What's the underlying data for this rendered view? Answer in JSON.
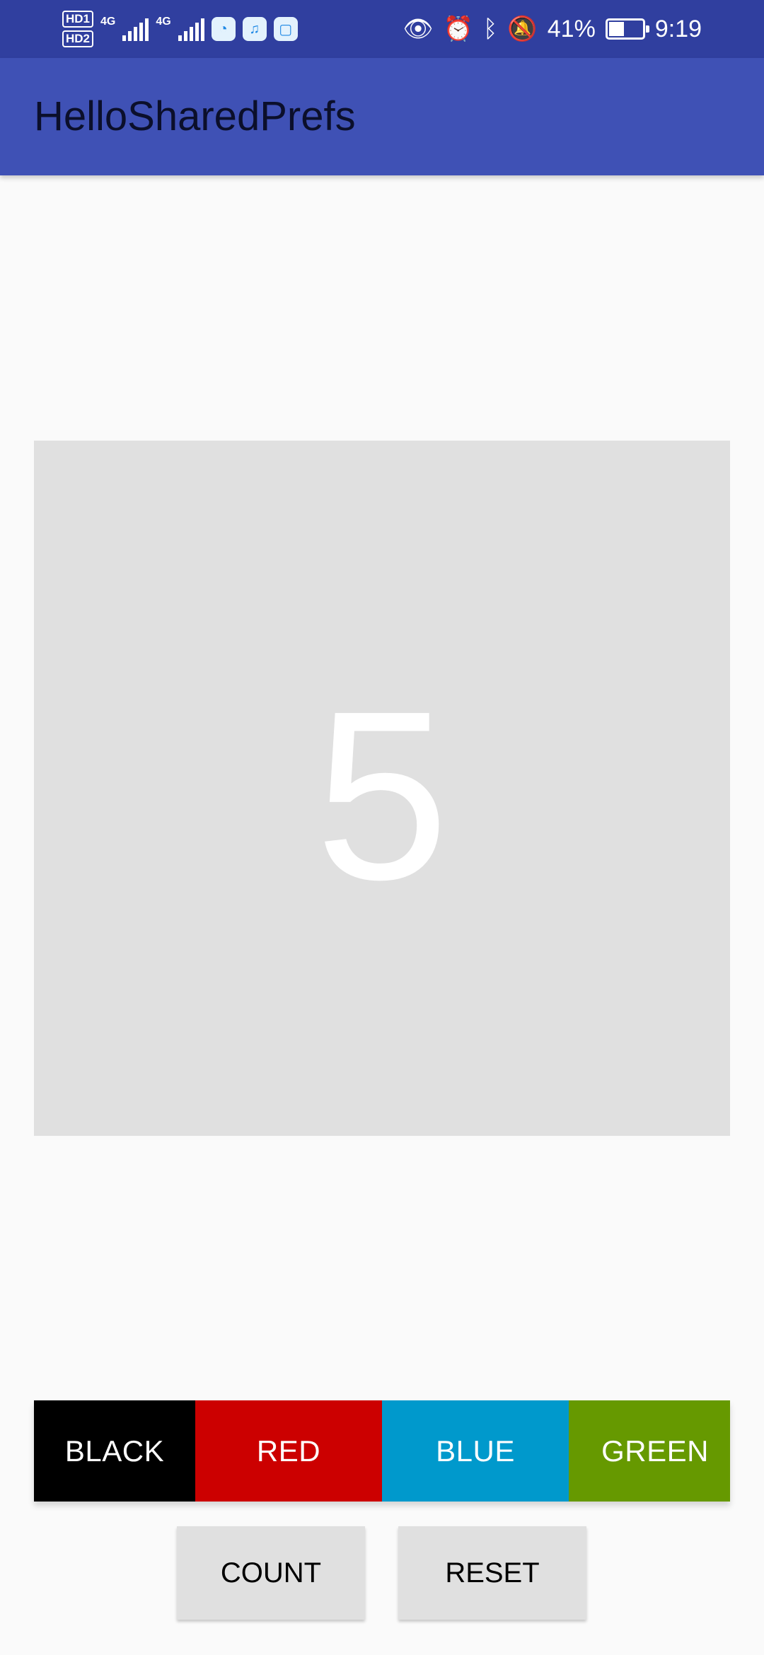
{
  "status_bar": {
    "hd1": "HD1",
    "hd2": "HD2",
    "net1": "4G",
    "net2": "4G",
    "battery_percent": "41%",
    "battery_level": 0.41,
    "time": "9:19",
    "icons": [
      "eye-icon",
      "alarm-icon",
      "bluetooth-icon",
      "bell-off-icon"
    ]
  },
  "app_bar": {
    "title": "HelloSharedPrefs",
    "background": "#3f51b5"
  },
  "counter": {
    "value": "5",
    "box_color": "#e0e0e0",
    "text_color": "#ffffff"
  },
  "color_buttons": {
    "black": {
      "label": "BLACK",
      "color": "#000000"
    },
    "red": {
      "label": "RED",
      "color": "#cc0000"
    },
    "blue": {
      "label": "BLUE",
      "color": "#0099cc"
    },
    "green": {
      "label": "GREEN",
      "color": "#669900"
    }
  },
  "actions": {
    "count_label": "COUNT",
    "reset_label": "RESET"
  }
}
